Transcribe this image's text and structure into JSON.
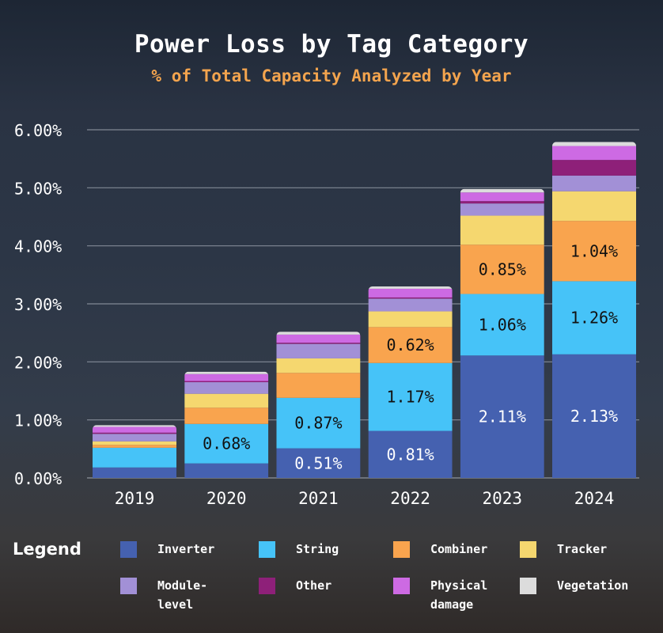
{
  "chart_data": {
    "type": "bar",
    "stacked": true,
    "title": "Power Loss by Tag Category",
    "subtitle": "% of Total Capacity Analyzed by Year",
    "categories": [
      "2019",
      "2020",
      "2021",
      "2022",
      "2023",
      "2024"
    ],
    "ylim": [
      0,
      6
    ],
    "yticks": [
      "0.00%",
      "1.00%",
      "2.00%",
      "3.00%",
      "4.00%",
      "5.00%",
      "6.00%"
    ],
    "grid": true,
    "legend_title": "Legend",
    "legend_position": "bottom",
    "series": [
      {
        "name": "Inverter",
        "color": "#4561b0",
        "values": [
          0.18,
          0.25,
          0.51,
          0.81,
          2.11,
          2.13
        ]
      },
      {
        "name": "String",
        "color": "#46c3f8",
        "values": [
          0.34,
          0.68,
          0.87,
          1.17,
          1.06,
          1.26
        ]
      },
      {
        "name": "Combiner",
        "color": "#f9a44e",
        "values": [
          0.05,
          0.28,
          0.43,
          0.62,
          0.85,
          1.04
        ]
      },
      {
        "name": "Tracker",
        "color": "#f5d76f",
        "values": [
          0.06,
          0.24,
          0.25,
          0.27,
          0.5,
          0.51
        ]
      },
      {
        "name": "Module-level",
        "color": "#a290d6",
        "values": [
          0.13,
          0.2,
          0.25,
          0.22,
          0.21,
          0.27
        ]
      },
      {
        "name": "Other",
        "color": "#8e2079",
        "values": [
          0.02,
          0.02,
          0.02,
          0.02,
          0.04,
          0.27
        ]
      },
      {
        "name": "Physical damage",
        "color": "#cd6ae3",
        "values": [
          0.1,
          0.12,
          0.14,
          0.15,
          0.15,
          0.24
        ]
      },
      {
        "name": "Vegetation",
        "color": "#dcdcdc",
        "values": [
          0.03,
          0.04,
          0.05,
          0.04,
          0.06,
          0.07
        ]
      }
    ],
    "data_labels": [
      {
        "category": "2020",
        "series": "String",
        "text": "0.68%"
      },
      {
        "category": "2021",
        "series": "Inverter",
        "text": "0.51%"
      },
      {
        "category": "2021",
        "series": "String",
        "text": "0.87%"
      },
      {
        "category": "2022",
        "series": "Inverter",
        "text": "0.81%"
      },
      {
        "category": "2022",
        "series": "String",
        "text": "1.17%"
      },
      {
        "category": "2022",
        "series": "Combiner",
        "text": "0.62%"
      },
      {
        "category": "2023",
        "series": "Inverter",
        "text": "2.11%"
      },
      {
        "category": "2023",
        "series": "String",
        "text": "1.06%"
      },
      {
        "category": "2023",
        "series": "Combiner",
        "text": "0.85%"
      },
      {
        "category": "2024",
        "series": "Inverter",
        "text": "2.13%"
      },
      {
        "category": "2024",
        "series": "String",
        "text": "1.26%"
      },
      {
        "category": "2024",
        "series": "Combiner",
        "text": "1.04%"
      }
    ],
    "legend": [
      {
        "label": "Inverter",
        "color": "#4561b0"
      },
      {
        "label": "String",
        "color": "#46c3f8"
      },
      {
        "label": "Combiner",
        "color": "#f9a44e"
      },
      {
        "label": "Tracker",
        "color": "#f5d76f"
      },
      {
        "label": "Module-level",
        "color": "#a290d6"
      },
      {
        "label": "Other",
        "color": "#8e2079"
      },
      {
        "label": "Physical damage",
        "color": "#cd6ae3"
      },
      {
        "label": "Vegetation",
        "color": "#dcdcdc"
      }
    ]
  }
}
